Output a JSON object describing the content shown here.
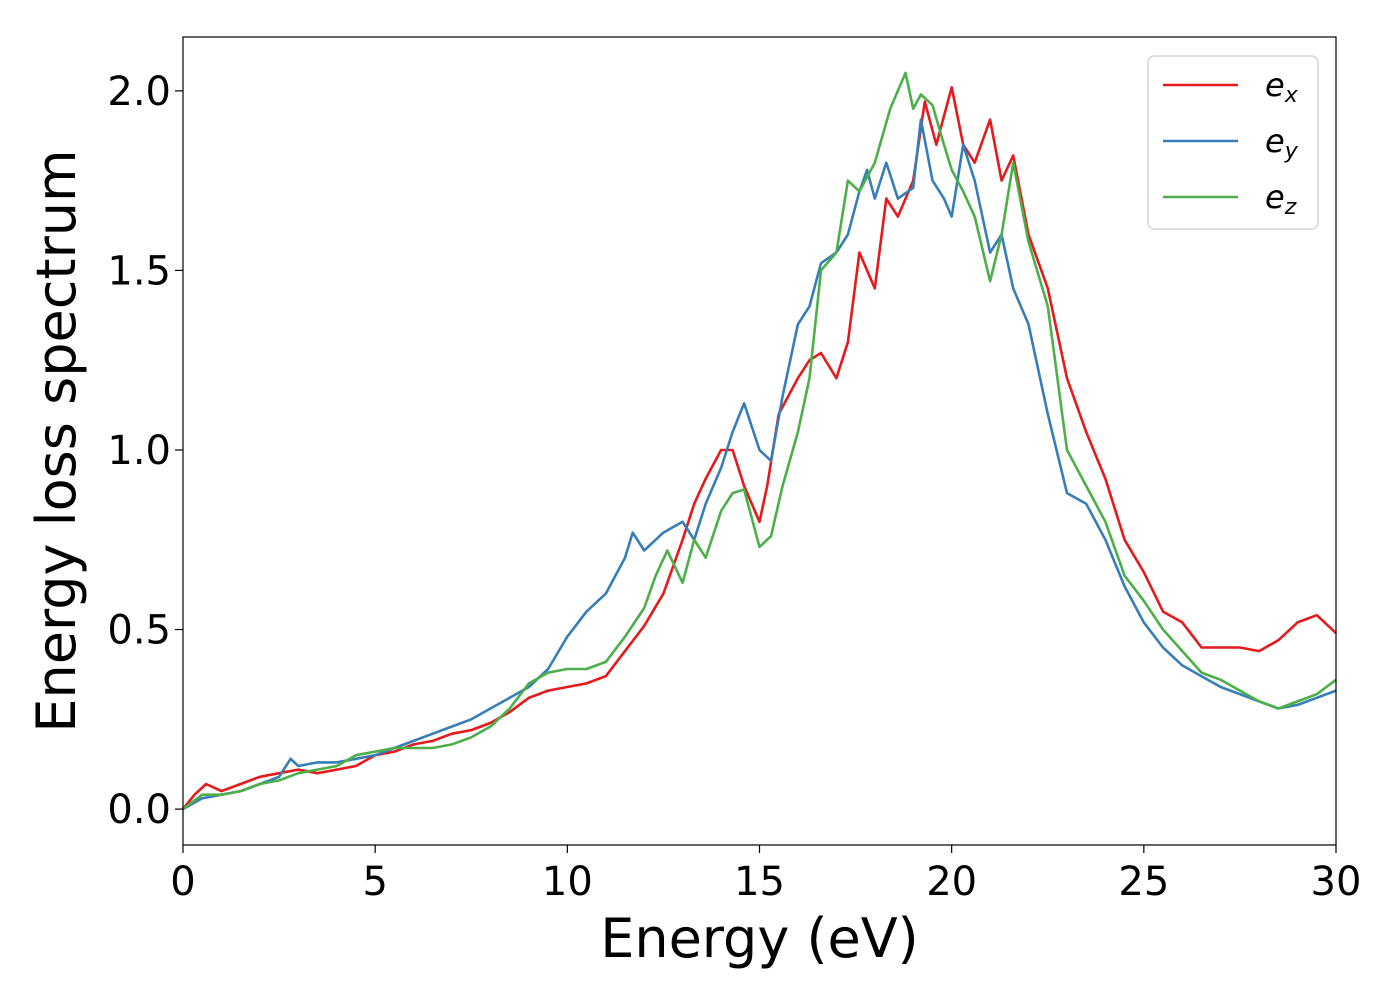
{
  "chart_data": {
    "type": "line",
    "xlabel": "Energy (eV)",
    "ylabel": "Energy loss spectrum",
    "xlim": [
      0,
      30
    ],
    "ylim": [
      -0.1,
      2.15
    ],
    "xticks": [
      0,
      5,
      10,
      15,
      20,
      25,
      30
    ],
    "xtick_labels": [
      "0",
      "5",
      "10",
      "15",
      "20",
      "25",
      "30"
    ],
    "yticks": [
      0.0,
      0.5,
      1.0,
      1.5,
      2.0
    ],
    "ytick_labels": [
      "0.0",
      "0.5",
      "1.0",
      "1.5",
      "2.0"
    ],
    "grid": false,
    "legend_position": "top-right",
    "series": [
      {
        "name": "e_x",
        "legend_main": "e",
        "legend_sub": "x",
        "color": "#e41a1c",
        "x": [
          0,
          0.3,
          0.6,
          1,
          1.5,
          2,
          2.5,
          3,
          3.5,
          4,
          4.5,
          5,
          5.5,
          6,
          6.5,
          7,
          7.5,
          8,
          8.5,
          9,
          9.5,
          10,
          10.5,
          11,
          11.5,
          12,
          12.5,
          13,
          13.3,
          13.6,
          14,
          14.3,
          14.6,
          15,
          15.2,
          15.5,
          16,
          16.3,
          16.6,
          17,
          17.3,
          17.6,
          18,
          18.3,
          18.6,
          19,
          19.3,
          19.6,
          20,
          20.3,
          20.6,
          21,
          21.3,
          21.6,
          22,
          22.5,
          23,
          23.5,
          24,
          24.5,
          25,
          25.5,
          26,
          26.5,
          27,
          27.5,
          28,
          28.5,
          29,
          29.5,
          30
        ],
        "y": [
          0,
          0.04,
          0.07,
          0.05,
          0.07,
          0.09,
          0.1,
          0.11,
          0.1,
          0.11,
          0.12,
          0.15,
          0.16,
          0.18,
          0.19,
          0.21,
          0.22,
          0.24,
          0.27,
          0.31,
          0.33,
          0.34,
          0.35,
          0.37,
          0.44,
          0.51,
          0.6,
          0.75,
          0.85,
          0.92,
          1.0,
          1.0,
          0.9,
          0.8,
          0.9,
          1.1,
          1.2,
          1.25,
          1.27,
          1.2,
          1.3,
          1.55,
          1.45,
          1.7,
          1.65,
          1.75,
          1.97,
          1.85,
          2.01,
          1.85,
          1.8,
          1.92,
          1.75,
          1.82,
          1.6,
          1.45,
          1.2,
          1.05,
          0.92,
          0.75,
          0.66,
          0.55,
          0.52,
          0.45,
          0.45,
          0.45,
          0.44,
          0.47,
          0.52,
          0.54,
          0.49
        ]
      },
      {
        "name": "e_y",
        "legend_main": "e",
        "legend_sub": "y",
        "color": "#377eb8",
        "x": [
          0,
          0.5,
          1,
          1.5,
          2,
          2.5,
          2.8,
          3,
          3.5,
          4,
          4.5,
          5,
          5.5,
          6,
          6.5,
          7,
          7.5,
          8,
          8.5,
          9,
          9.5,
          10,
          10.5,
          11,
          11.5,
          11.7,
          12,
          12.5,
          13,
          13.3,
          13.6,
          14,
          14.3,
          14.6,
          15,
          15.3,
          15.6,
          16,
          16.3,
          16.6,
          17,
          17.3,
          17.6,
          17.8,
          18,
          18.3,
          18.6,
          19,
          19.2,
          19.5,
          19.8,
          20,
          20.3,
          20.6,
          21,
          21.3,
          21.6,
          22,
          22.5,
          23,
          23.5,
          24,
          24.5,
          25,
          25.5,
          26,
          26.5,
          27,
          27.5,
          28,
          28.5,
          29,
          29.5,
          30
        ],
        "y": [
          0,
          0.03,
          0.04,
          0.05,
          0.07,
          0.09,
          0.14,
          0.12,
          0.13,
          0.13,
          0.14,
          0.15,
          0.17,
          0.19,
          0.21,
          0.23,
          0.25,
          0.28,
          0.31,
          0.34,
          0.39,
          0.48,
          0.55,
          0.6,
          0.7,
          0.77,
          0.72,
          0.77,
          0.8,
          0.75,
          0.85,
          0.95,
          1.05,
          1.13,
          1.0,
          0.97,
          1.15,
          1.35,
          1.4,
          1.52,
          1.55,
          1.6,
          1.72,
          1.78,
          1.7,
          1.8,
          1.7,
          1.73,
          1.92,
          1.75,
          1.7,
          1.65,
          1.85,
          1.75,
          1.55,
          1.6,
          1.45,
          1.35,
          1.1,
          0.88,
          0.85,
          0.75,
          0.62,
          0.52,
          0.45,
          0.4,
          0.37,
          0.34,
          0.32,
          0.3,
          0.28,
          0.29,
          0.31,
          0.33
        ]
      },
      {
        "name": "e_z",
        "legend_main": "e",
        "legend_sub": "z",
        "color": "#4daf4a",
        "x": [
          0,
          0.5,
          1,
          1.5,
          2,
          2.5,
          3,
          3.5,
          4,
          4.5,
          5,
          5.5,
          6,
          6.5,
          7,
          7.5,
          8,
          8.5,
          9,
          9.5,
          10,
          10.5,
          11,
          11.5,
          12,
          12.3,
          12.6,
          13,
          13.3,
          13.6,
          14,
          14.3,
          14.6,
          15,
          15.3,
          15.6,
          16,
          16.3,
          16.6,
          17,
          17.3,
          17.6,
          18,
          18.4,
          18.8,
          19,
          19.2,
          19.5,
          19.8,
          20,
          20.3,
          20.6,
          21,
          21.3,
          21.6,
          22,
          22.5,
          23,
          23.5,
          24,
          24.5,
          25,
          25.5,
          26,
          26.5,
          27,
          27.5,
          28,
          28.5,
          29,
          29.5,
          30
        ],
        "y": [
          0,
          0.04,
          0.04,
          0.05,
          0.07,
          0.08,
          0.1,
          0.11,
          0.12,
          0.15,
          0.16,
          0.17,
          0.17,
          0.17,
          0.18,
          0.2,
          0.23,
          0.28,
          0.35,
          0.38,
          0.39,
          0.39,
          0.41,
          0.48,
          0.56,
          0.65,
          0.72,
          0.63,
          0.75,
          0.7,
          0.83,
          0.88,
          0.89,
          0.73,
          0.76,
          0.9,
          1.05,
          1.2,
          1.5,
          1.55,
          1.75,
          1.72,
          1.8,
          1.95,
          2.05,
          1.95,
          1.99,
          1.96,
          1.85,
          1.78,
          1.72,
          1.65,
          1.47,
          1.6,
          1.8,
          1.58,
          1.4,
          1.0,
          0.9,
          0.8,
          0.65,
          0.58,
          0.5,
          0.44,
          0.38,
          0.36,
          0.33,
          0.3,
          0.28,
          0.3,
          0.32,
          0.36
        ]
      }
    ]
  }
}
